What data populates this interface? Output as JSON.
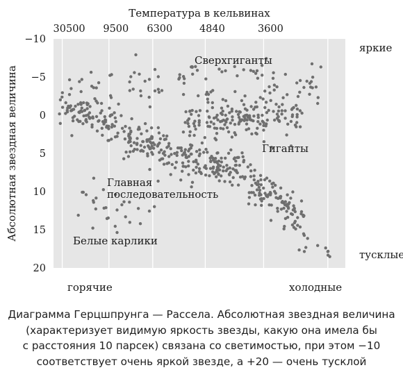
{
  "chart_data": {
    "type": "scatter",
    "title": "",
    "top_axis_label": "Температура в кельвинах",
    "top_ticks": [
      "30500",
      "9500",
      "6300",
      "4840",
      "3600"
    ],
    "ylabel": "Абсолютная звездная величина",
    "y_ticks": [
      "−10",
      "−5",
      "0",
      "5",
      "10",
      "15",
      "20"
    ],
    "ylim": [
      -10,
      20
    ],
    "y_inverted": true,
    "right_labels": {
      "top": "яркие",
      "bottom": "тусклые"
    },
    "bottom_labels": {
      "left": "горячие",
      "right": "холодные"
    },
    "annotations": {
      "supergiants": "Сверхгиганты",
      "giants": "Гиганты",
      "main_sequence_line1": "Главная",
      "main_sequence_line2": "последовательность",
      "white_dwarfs": "Белые карлики"
    },
    "grid": true,
    "colors": {
      "background": "#e6e6e6",
      "points": "#6f6f6f",
      "grid": "#ffffff"
    },
    "regions": [
      {
        "name": "main-sequence",
        "count": 430,
        "x_range": [
          0.02,
          0.86
        ],
        "y_path": [
          [
            0.02,
            -1.5
          ],
          [
            0.15,
            0.5
          ],
          [
            0.3,
            3.5
          ],
          [
            0.45,
            5.5
          ],
          [
            0.6,
            7.0
          ],
          [
            0.75,
            10.0
          ],
          [
            0.86,
            14.0
          ]
        ],
        "spread": 1.3
      },
      {
        "name": "giants",
        "count": 180,
        "x_range": [
          0.45,
          0.86
        ],
        "y_center": 0.5,
        "spread": 1.4
      },
      {
        "name": "supergiants",
        "count": 95,
        "x_range": [
          0.05,
          0.92
        ],
        "y_center": -4.5,
        "spread": 1.5
      },
      {
        "name": "white-dwarfs",
        "count": 28,
        "x_range": [
          0.08,
          0.38
        ],
        "y_center": 12.5,
        "spread": 1.6
      },
      {
        "name": "tail",
        "count": 12,
        "x_range": [
          0.8,
          0.95
        ],
        "y_center": 15.5,
        "spread": 1.0
      }
    ]
  },
  "caption": [
    "Диаграмма Герцшпрунга — Рассела. Абсолютная звездная величина",
    "(характеризует видимую яркость звезды, какую она имела бы",
    "с расстояния 10 парсек) связана со светимостью, при этом −10",
    "соответствует очень яркой звезде, а +20 — очень тусклой"
  ]
}
